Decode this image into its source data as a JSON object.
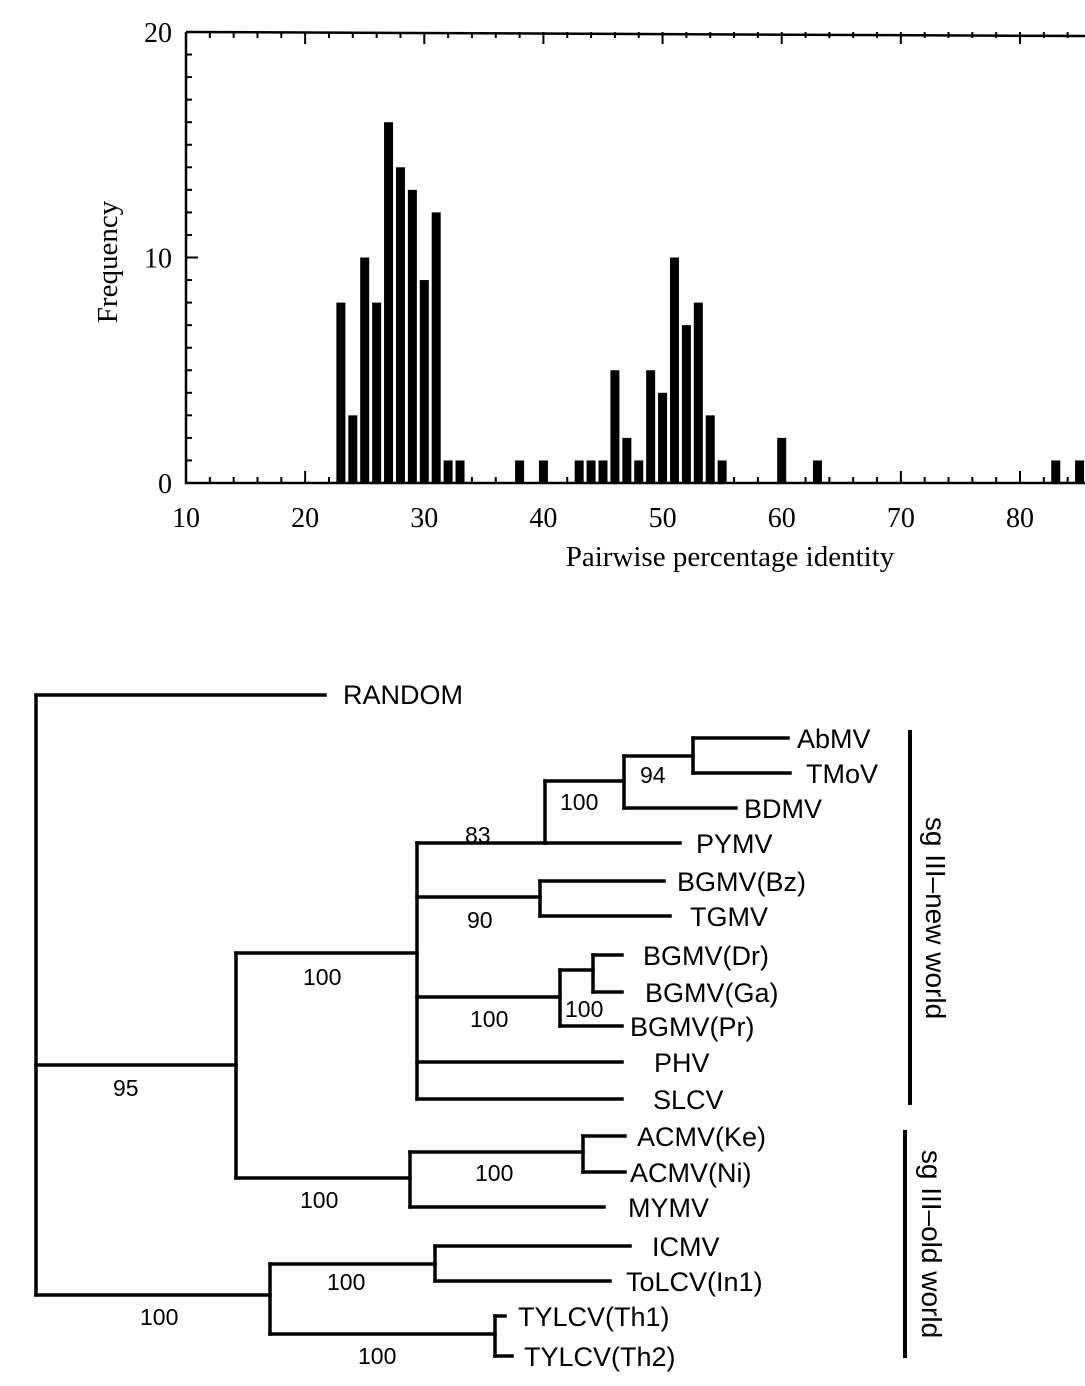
{
  "chart_data": [
    {
      "type": "bar",
      "title": "",
      "xlabel": "Pairwise percentage identity",
      "ylabel": "Frequency",
      "xlim": [
        10,
        85
      ],
      "ylim": [
        0,
        20
      ],
      "xticks": [
        10,
        20,
        30,
        40,
        50,
        60,
        70,
        80
      ],
      "xtick_labels": [
        "10",
        "20",
        "30",
        "40",
        "50",
        "60",
        "70",
        "80"
      ],
      "yticks": [
        0,
        10,
        20
      ],
      "ytick_labels": [
        "0",
        "10",
        "20"
      ],
      "x": [
        23,
        24,
        25,
        26,
        27,
        28,
        29,
        30,
        31,
        32,
        33,
        38,
        40,
        43,
        44,
        45,
        46,
        47,
        48,
        49,
        50,
        51,
        52,
        53,
        54,
        55,
        60,
        63,
        83,
        85
      ],
      "values": [
        8,
        3,
        10,
        8,
        16,
        14,
        13,
        9,
        12,
        1,
        1,
        1,
        1,
        1,
        1,
        1,
        5,
        2,
        1,
        5,
        4,
        10,
        7,
        8,
        3,
        1,
        2,
        1,
        1,
        1
      ],
      "grid": false
    },
    {
      "type": "tree",
      "outgroup": "RANDOM",
      "leaves": [
        "AbMV",
        "TMoV",
        "BDMV",
        "PYMV",
        "BGMV(Bz)",
        "TGMV",
        "BGMV(Dr)",
        "BGMV(Ga)",
        "BGMV(Pr)",
        "PHV",
        "SLCV",
        "ACMV(Ke)",
        "ACMV(Ni)",
        "MYMV",
        "ICMV",
        "ToLCV(In1)",
        "TYLCV(Th1)",
        "TYLCV(Th2)"
      ],
      "support_values": [
        "94",
        "100",
        "83",
        "90",
        "100",
        "100",
        "100",
        "100",
        "95",
        "100",
        "100",
        "100"
      ],
      "clade_labels": [
        "sg III–new world",
        "sg III–old world"
      ]
    }
  ]
}
